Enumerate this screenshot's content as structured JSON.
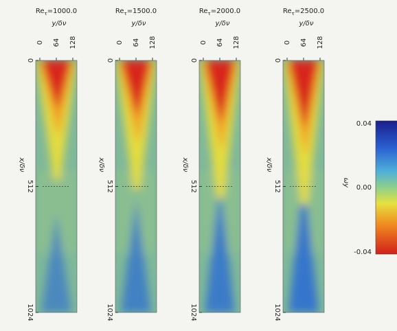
{
  "panels": [
    {
      "title": {
        "base": "Re",
        "sub": "τ",
        "rest": "=1000.0"
      },
      "top_label": "y/δν",
      "top_ticks": [
        "0",
        "64",
        "128"
      ],
      "side_label": "x/δν",
      "side_ticks": [
        "0",
        "512",
        "1024"
      ]
    },
    {
      "title": {
        "base": "Re",
        "sub": "τ",
        "rest": "=1500.0"
      },
      "top_label": "y/δν",
      "top_ticks": [
        "0",
        "64",
        "128"
      ],
      "side_label": "x/δν",
      "side_ticks": [
        "0",
        "512",
        "1024"
      ]
    },
    {
      "title": {
        "base": "Re",
        "sub": "τ",
        "rest": "=2000.0"
      },
      "top_label": "y/δν",
      "top_ticks": [
        "0",
        "64",
        "128"
      ],
      "side_label": "x/δν",
      "side_ticks": [
        "0",
        "512",
        "1024"
      ]
    },
    {
      "title": {
        "base": "Re",
        "sub": "τ",
        "rest": "=2500.0"
      },
      "top_label": "y/δν",
      "top_ticks": [
        "0",
        "64",
        "128"
      ],
      "side_label": "x/δν",
      "side_ticks": [
        "0",
        "512",
        "1024"
      ]
    }
  ],
  "colorbar": {
    "label": "ωy",
    "ticks": [
      "0.04",
      "0.00",
      "-0.04"
    ]
  }
}
